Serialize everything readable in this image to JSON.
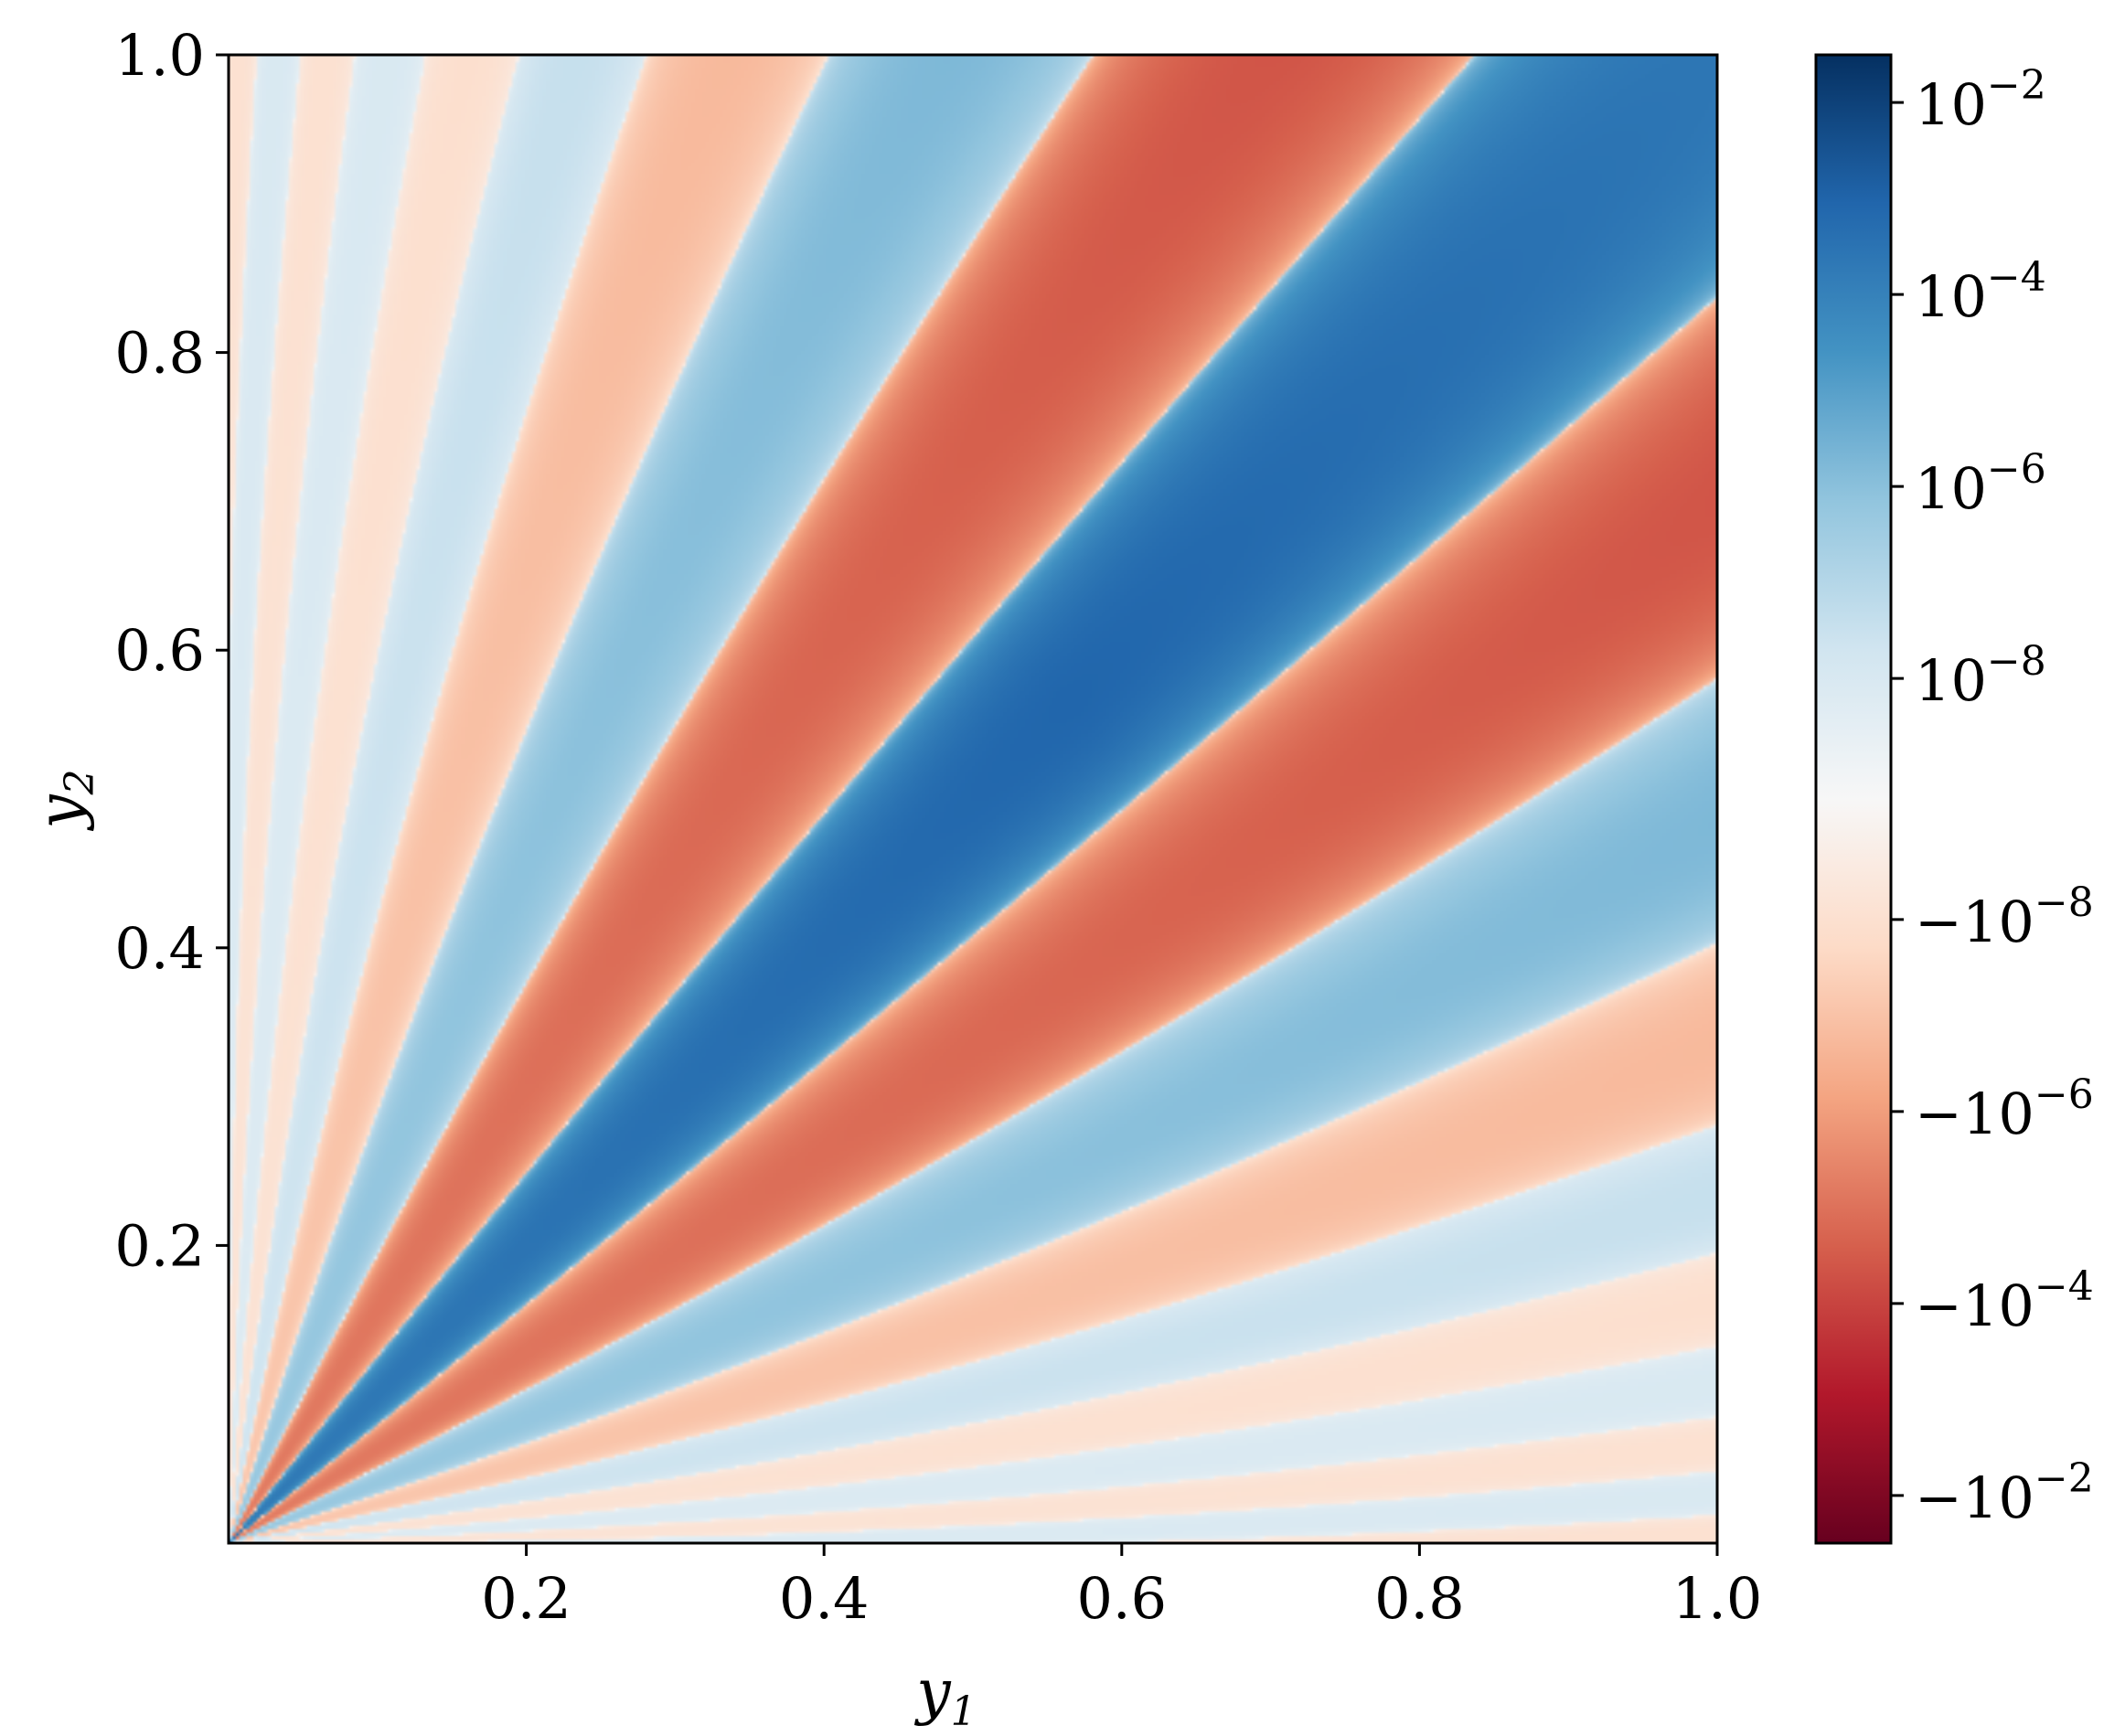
{
  "chart_data": {
    "type": "heatmap",
    "title": "",
    "xlabel": {
      "base": "y",
      "sub": "1"
    },
    "ylabel": {
      "base": "y",
      "sub": "2"
    },
    "xlim": [
      0.0,
      1.0
    ],
    "ylim": [
      0.0,
      1.0
    ],
    "x_ticks": [
      {
        "value": 0.2,
        "label": "0.2"
      },
      {
        "value": 0.4,
        "label": "0.4"
      },
      {
        "value": 0.6,
        "label": "0.6"
      },
      {
        "value": 0.8,
        "label": "0.8"
      },
      {
        "value": 1.0,
        "label": "1.0"
      }
    ],
    "y_ticks": [
      {
        "value": 0.2,
        "label": "0.2"
      },
      {
        "value": 0.4,
        "label": "0.4"
      },
      {
        "value": 0.6,
        "label": "0.6"
      },
      {
        "value": 0.8,
        "label": "0.8"
      },
      {
        "value": 1.0,
        "label": "1.0"
      }
    ],
    "colormap": "RdBu (diverging, symmetric log)",
    "colorbar": {
      "scale": "symlog",
      "range": [
        -0.05,
        0.05
      ],
      "ticks": [
        {
          "label": "10",
          "exp": "−2",
          "position": 0.968
        },
        {
          "label": "10",
          "exp": "−4",
          "position": 0.839
        },
        {
          "label": "10",
          "exp": "−6",
          "position": 0.71
        },
        {
          "label": "10",
          "exp": "−8",
          "position": 0.581
        },
        {
          "label": "−10",
          "exp": "−8",
          "position": 0.419
        },
        {
          "label": "−10",
          "exp": "−6",
          "position": 0.29
        },
        {
          "label": "−10",
          "exp": "−4",
          "position": 0.161
        },
        {
          "label": "−10",
          "exp": "−2",
          "position": 0.032
        }
      ],
      "colors": [
        "#67001f",
        "#b2182b",
        "#d6604d",
        "#f4a582",
        "#fddbc7",
        "#f7f7f7",
        "#d1e5f0",
        "#92c5de",
        "#4393c3",
        "#2166ac",
        "#053061"
      ]
    },
    "pattern": "alternating sign bands radiating from the origin, strongest (dark blue) along the diagonal y2 ≈ y1, red bands either side, fading toward the axes",
    "grid": false
  }
}
